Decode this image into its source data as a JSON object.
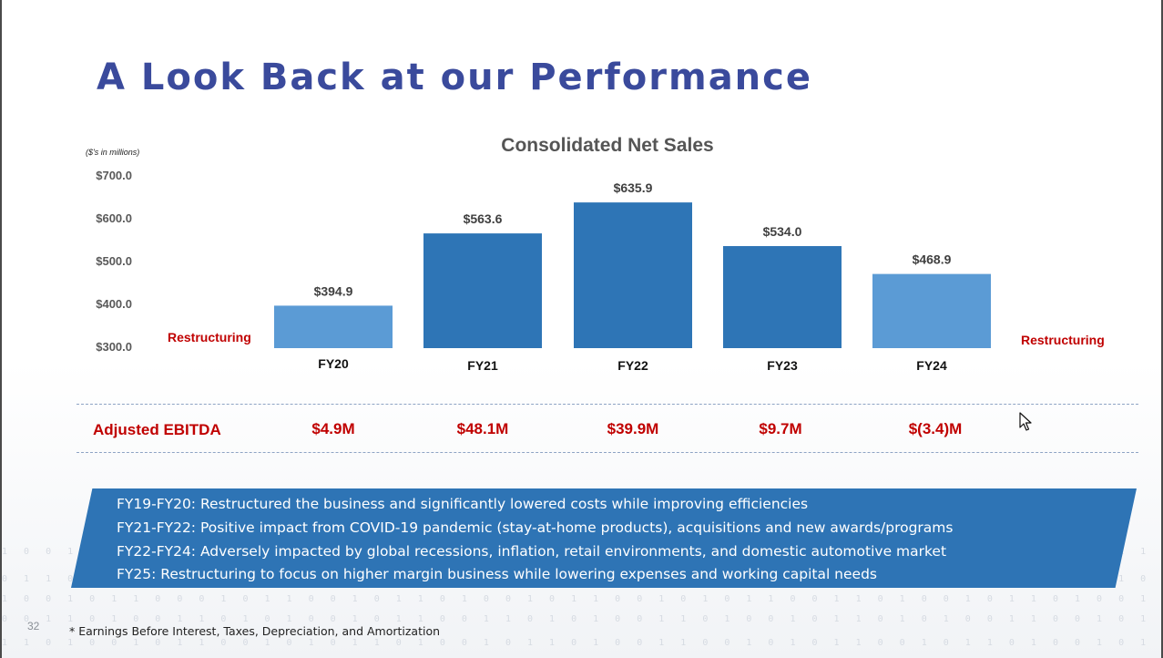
{
  "slide": {
    "title": "A Look Back at our Performance",
    "page_number": "32",
    "footnote": "* Earnings Before Interest, Taxes, Depreciation, and Amortization"
  },
  "chart_data": {
    "type": "bar",
    "title": "Consolidated Net Sales",
    "unit_note": "($'s in millions)",
    "categories": [
      "FY20",
      "FY21",
      "FY22",
      "FY23",
      "FY24"
    ],
    "values": [
      394.9,
      563.6,
      635.9,
      534.0,
      468.9
    ],
    "value_labels": [
      "$394.9",
      "$563.6",
      "$635.9",
      "$534.0",
      "$468.9"
    ],
    "bar_colors": [
      "#5b9bd5",
      "#2e75b6",
      "#2e75b6",
      "#2e75b6",
      "#5b9bd5"
    ],
    "ylim": [
      300,
      700
    ],
    "yticks": [
      300,
      400,
      500,
      600,
      700
    ],
    "ytick_labels": [
      "$300.0",
      "$400.0",
      "$500.0",
      "$600.0",
      "$700.0"
    ],
    "grid": false,
    "legend": "none"
  },
  "annotations": {
    "restructuring_left": "Restructuring",
    "restructuring_right": "Restructuring"
  },
  "ebitda": {
    "label": "Adjusted EBITDA",
    "values": [
      "$4.9M",
      "$48.1M",
      "$39.9M",
      "$9.7M",
      "$(3.4)M"
    ]
  },
  "notes": [
    "FY19-FY20: Restructured the business and significantly lowered costs while improving efficiencies",
    "FY21-FY22: Positive impact from COVID-19 pandemic (stay-at-home products), acquisitions and new awards/programs",
    "FY22-FY24: Adversely impacted by global recessions, inflation, retail environments, and domestic automotive market",
    "FY25: Restructuring to focus on higher margin business while lowering expenses and working capital needs"
  ],
  "colors": {
    "title": "#3a4a9c",
    "accent_red": "#c00000",
    "banner": "#2e74b5"
  },
  "icons": {
    "cursor": "mouse-pointer-icon"
  }
}
